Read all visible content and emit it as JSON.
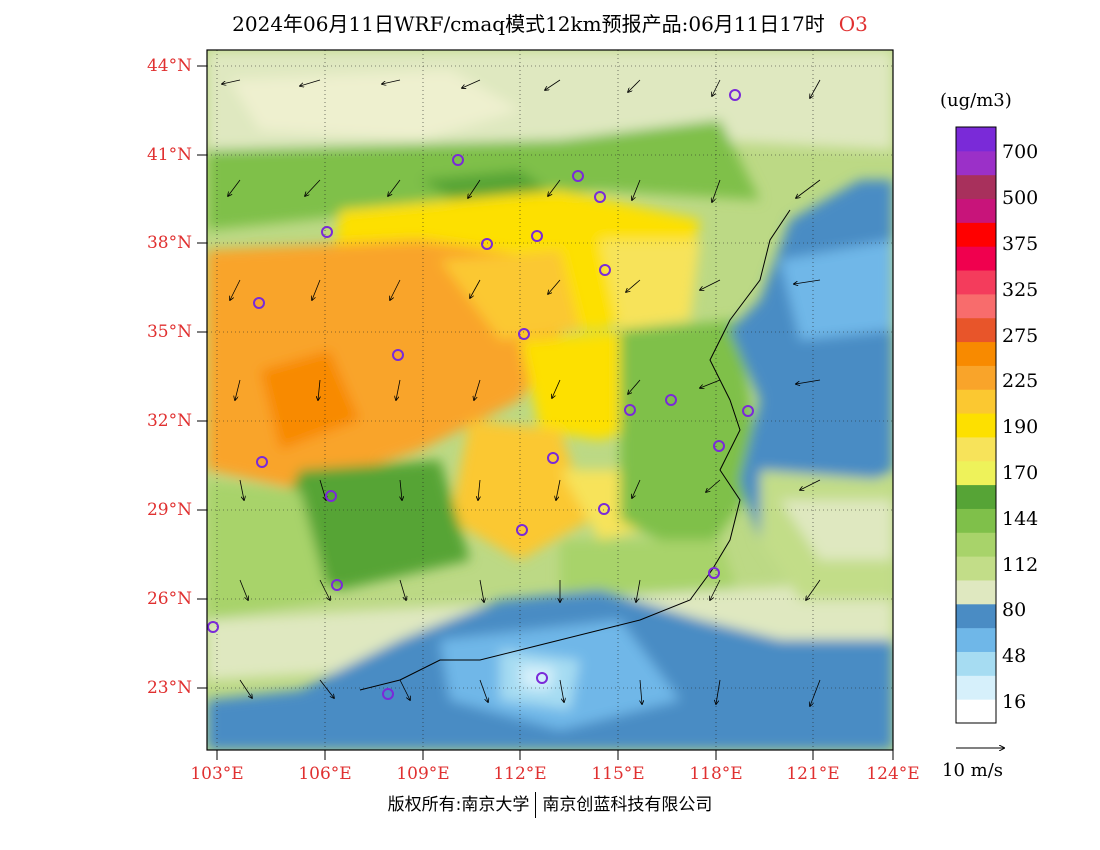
{
  "title": "2024年06月11日WRF/cmaq模式12km预报产品:06月11日17时",
  "species": "O3",
  "lat_labels": [
    "44°N",
    "41°N",
    "38°N",
    "35°N",
    "32°N",
    "29°N",
    "26°N",
    "23°N"
  ],
  "lon_labels": [
    "103°E",
    "106°E",
    "109°E",
    "112°E",
    "115°E",
    "118°E",
    "121°E",
    "124°E"
  ],
  "colorbar": {
    "unit": "(ug/m3)",
    "colors": [
      "#ffffff",
      "#d6f0fb",
      "#a6dcf2",
      "#6fb7e8",
      "#4a8cc4",
      "#dfe8c0",
      "#c2dd88",
      "#a8d36a",
      "#7fc04a",
      "#56a436",
      "#eef25a",
      "#f7e35a",
      "#fde000",
      "#fbc831",
      "#f9a42a",
      "#f88a00",
      "#e8552a",
      "#f86c6c",
      "#f43c5c",
      "#f0004e",
      "#ff0000",
      "#c8147a",
      "#a8305c",
      "#9b30c8",
      "#7a2ad8"
    ],
    "labels": [
      "700",
      "500",
      "375",
      "325",
      "275",
      "225",
      "190",
      "170",
      "144",
      "112",
      "80",
      "48",
      "16"
    ]
  },
  "wind_scale_label": "10 m/s",
  "footer": {
    "left": "版权所有:南京大学",
    "right": "南京创蓝科技有限公司"
  }
}
